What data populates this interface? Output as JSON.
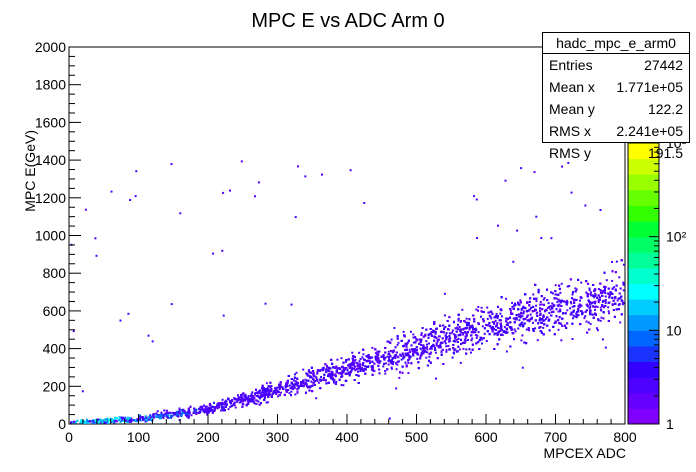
{
  "chart_data": {
    "type": "heatmap",
    "title": "MPC E vs ADC Arm 0",
    "xlabel": "MPCEX ADC",
    "ylabel": "MPC E(GeV)",
    "xlim": [
      0,
      800
    ],
    "ylim": [
      0,
      2000
    ],
    "x_ticks": [
      "0",
      "100",
      "200",
      "300",
      "400",
      "500",
      "600",
      "700",
      "800"
    ],
    "y_ticks": [
      "0",
      "200",
      "400",
      "600",
      "800",
      "1000",
      "1200",
      "1400",
      "1600",
      "1800",
      "2000"
    ],
    "colorbar": {
      "scale": "log",
      "range": [
        1,
        1000
      ],
      "tick_labels": [
        "1",
        "10",
        "10²",
        "10³"
      ],
      "colors": [
        "#7f00ff",
        "#6600ff",
        "#4c00ff",
        "#3300ff",
        "#1a33ff",
        "#0066ff",
        "#0099ff",
        "#00ccff",
        "#00ffff",
        "#00ffcc",
        "#00ff99",
        "#00ff66",
        "#00ff33",
        "#33ff00",
        "#66ff00",
        "#99ff00",
        "#ccff00",
        "#ffff00"
      ]
    },
    "trend": {
      "description": "Band of counts rising from origin; E grows roughly quadratically with ADC",
      "points": [
        [
          0,
          10
        ],
        [
          100,
          30
        ],
        [
          200,
          85
        ],
        [
          300,
          190
        ],
        [
          400,
          300
        ],
        [
          500,
          410
        ],
        [
          600,
          520
        ],
        [
          700,
          610
        ],
        [
          800,
          700
        ]
      ],
      "spread_fraction": 0.17,
      "dense_region": [
        0,
        230
      ]
    },
    "stats_box": {
      "name": "hadc_mpc_e_arm0",
      "rows": [
        {
          "label": "Entries",
          "value": "27442"
        },
        {
          "label": "Mean x",
          "value": "1.771e+05"
        },
        {
          "label": "Mean y",
          "value": "122.2"
        },
        {
          "label": "RMS x",
          "value": "2.241e+05"
        },
        {
          "label": "RMS y",
          "value": "191.5"
        }
      ]
    }
  }
}
